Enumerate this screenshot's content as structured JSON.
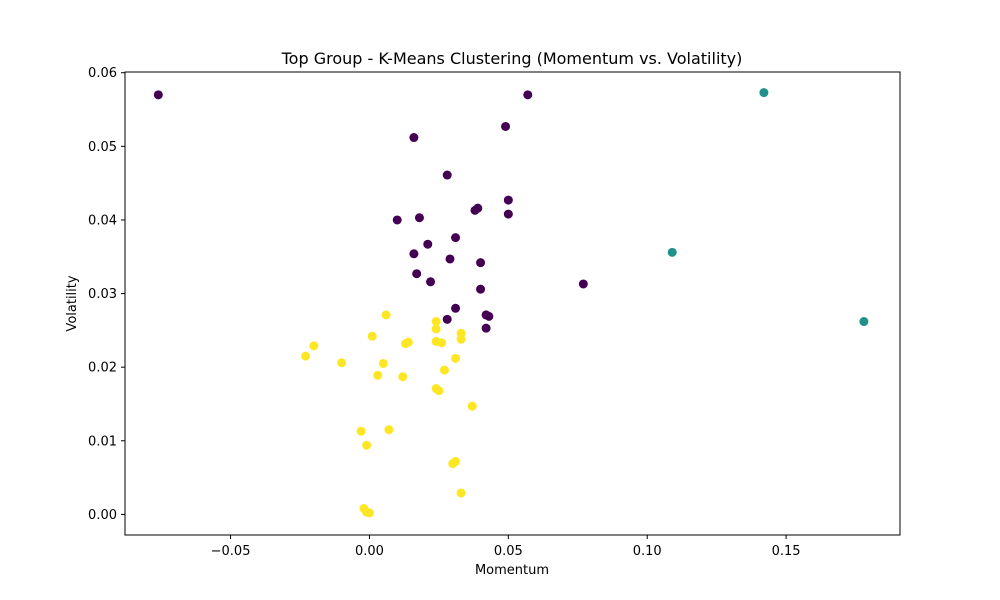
{
  "chart_data": {
    "type": "scatter",
    "title": "Top Group - K-Means Clustering (Momentum vs. Volatility)",
    "xlabel": "Momentum",
    "ylabel": "Volatility",
    "xlim": [
      -0.088,
      0.191
    ],
    "ylim": [
      -0.0028,
      0.0601
    ],
    "xticks": [
      -0.05,
      0.0,
      0.05,
      0.1,
      0.15
    ],
    "xtick_labels": [
      "−0.05",
      "0.00",
      "0.05",
      "0.10",
      "0.15"
    ],
    "yticks": [
      0.0,
      0.01,
      0.02,
      0.03,
      0.04,
      0.05,
      0.06
    ],
    "ytick_labels": [
      "0.00",
      "0.01",
      "0.02",
      "0.03",
      "0.04",
      "0.05",
      "0.06"
    ],
    "grid": false,
    "colors": {
      "cluster_0": "#440154",
      "cluster_1": "#21918c",
      "cluster_2": "#fde725"
    },
    "series": [
      {
        "cluster": 0,
        "color": "#440154",
        "points": [
          [
            -0.076,
            0.057
          ],
          [
            0.057,
            0.057
          ],
          [
            0.049,
            0.0527
          ],
          [
            0.016,
            0.0512
          ],
          [
            0.028,
            0.0461
          ],
          [
            0.05,
            0.0427
          ],
          [
            0.039,
            0.0416
          ],
          [
            0.038,
            0.0413
          ],
          [
            0.05,
            0.0408
          ],
          [
            0.018,
            0.0403
          ],
          [
            0.01,
            0.04
          ],
          [
            0.031,
            0.0376
          ],
          [
            0.021,
            0.0367
          ],
          [
            0.016,
            0.0354
          ],
          [
            0.029,
            0.0347
          ],
          [
            0.04,
            0.0342
          ],
          [
            0.017,
            0.0327
          ],
          [
            0.022,
            0.0316
          ],
          [
            0.077,
            0.0313
          ],
          [
            0.04,
            0.0306
          ],
          [
            0.031,
            0.028
          ],
          [
            0.042,
            0.0271
          ],
          [
            0.043,
            0.0269
          ],
          [
            0.028,
            0.0265
          ],
          [
            0.042,
            0.0253
          ]
        ]
      },
      {
        "cluster": 1,
        "color": "#21918c",
        "points": [
          [
            0.142,
            0.0573
          ],
          [
            0.109,
            0.0356
          ],
          [
            0.178,
            0.0262
          ]
        ]
      },
      {
        "cluster": 2,
        "color": "#fde725",
        "points": [
          [
            0.006,
            0.0271
          ],
          [
            0.024,
            0.0262
          ],
          [
            0.024,
            0.0252
          ],
          [
            0.033,
            0.0246
          ],
          [
            0.001,
            0.0242
          ],
          [
            0.033,
            0.0238
          ],
          [
            0.024,
            0.0235
          ],
          [
            0.014,
            0.0234
          ],
          [
            0.013,
            0.0232
          ],
          [
            0.026,
            0.0233
          ],
          [
            -0.02,
            0.0229
          ],
          [
            -0.023,
            0.0215
          ],
          [
            0.031,
            0.0212
          ],
          [
            -0.01,
            0.0206
          ],
          [
            0.005,
            0.0205
          ],
          [
            0.027,
            0.0196
          ],
          [
            0.003,
            0.0189
          ],
          [
            0.012,
            0.0187
          ],
          [
            0.024,
            0.0171
          ],
          [
            0.025,
            0.0168
          ],
          [
            0.037,
            0.0147
          ],
          [
            0.007,
            0.0115
          ],
          [
            -0.003,
            0.0113
          ],
          [
            -0.001,
            0.0094
          ],
          [
            0.031,
            0.0072
          ],
          [
            0.03,
            0.0069
          ],
          [
            0.033,
            0.0029
          ],
          [
            -0.002,
            0.0008
          ],
          [
            -0.001,
            0.0003
          ],
          [
            0.0,
            0.0002
          ]
        ]
      }
    ]
  }
}
